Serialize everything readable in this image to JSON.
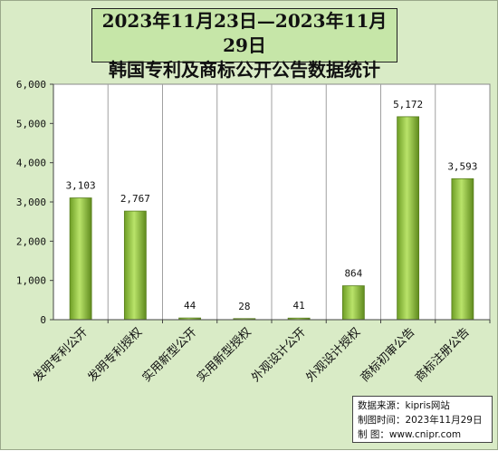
{
  "title_line1": "2023年11月23日—2023年11月29日",
  "title_line2": "韩国专利及商标公开公告数据统计",
  "chart_data": {
    "type": "bar",
    "title": "2023年11月23日—2023年11月29日 韩国专利及商标公开公告数据统计",
    "categories": [
      "发明专利公开",
      "发明专利授权",
      "实用新型公开",
      "实用新型授权",
      "外观设计公开",
      "外观设计授权",
      "商标初审公告",
      "商标注册公告"
    ],
    "values": [
      3103,
      2767,
      44,
      28,
      41,
      864,
      5172,
      3593
    ],
    "value_labels": [
      "3,103",
      "2,767",
      "44",
      "28",
      "41",
      "864",
      "5,172",
      "3,593"
    ],
    "ylim": [
      0,
      6000
    ],
    "yticks": [
      0,
      1000,
      2000,
      3000,
      4000,
      5000,
      6000
    ],
    "ytick_labels": [
      "0",
      "1,000",
      "2,000",
      "3,000",
      "4,000",
      "5,000",
      "6,000"
    ],
    "grid": true,
    "legend": "none",
    "bar_color": "#8dc63f"
  },
  "source": {
    "line1": "数据来源：kipris网站",
    "line2": "制图时间：2023年11月29日",
    "line3": "制    图：www.cnipr.com"
  }
}
